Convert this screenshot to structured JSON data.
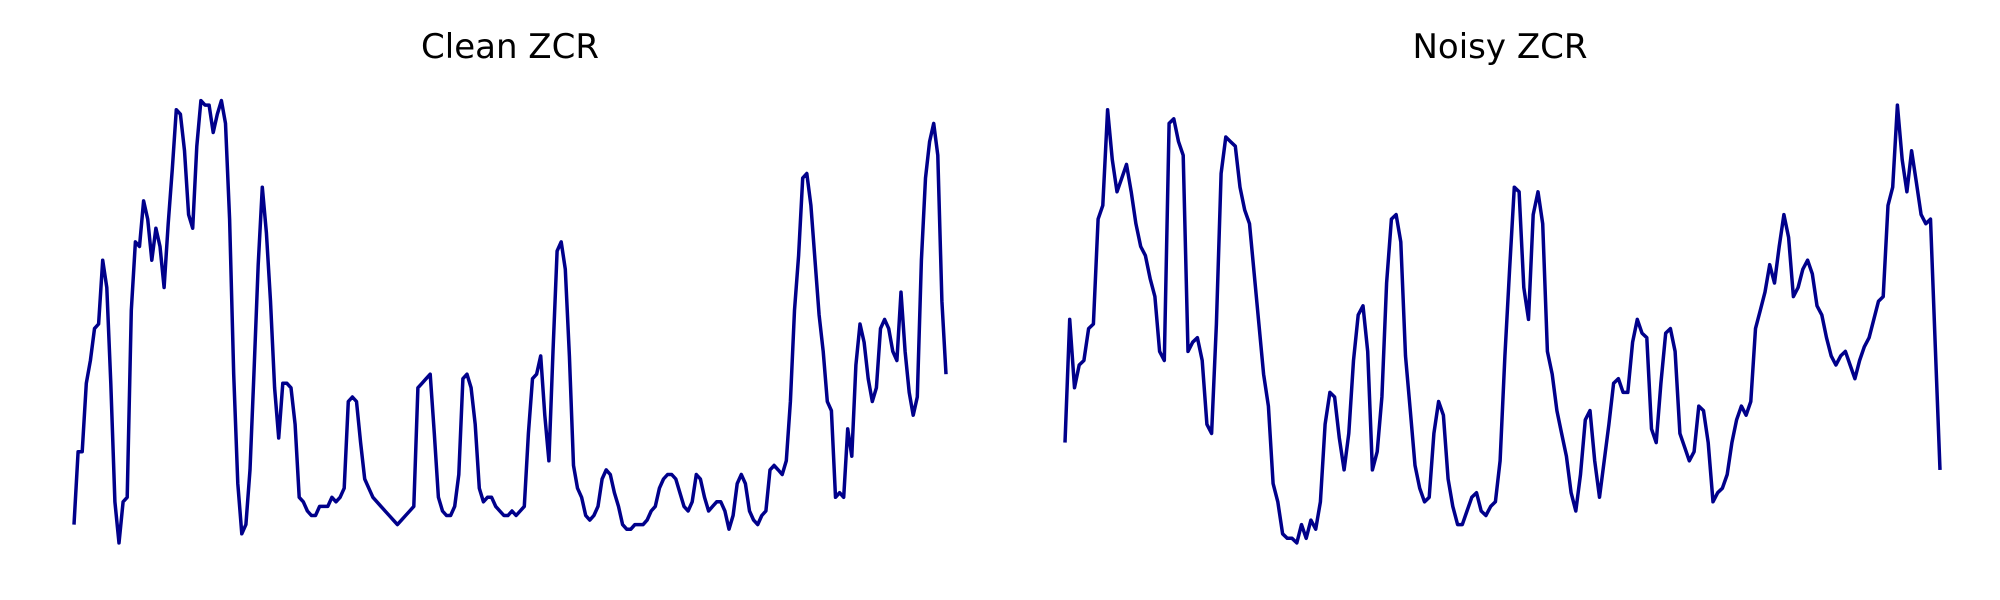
{
  "chart_data": [
    {
      "type": "line",
      "title": "Clean ZCR",
      "xlabel": "",
      "ylabel": "",
      "grid": false,
      "axes_visible": false,
      "color": "#00008b",
      "ylim": [
        0,
        1
      ],
      "values": [
        0.06,
        0.22,
        0.22,
        0.37,
        0.42,
        0.49,
        0.5,
        0.64,
        0.58,
        0.37,
        0.11,
        0.02,
        0.11,
        0.12,
        0.53,
        0.68,
        0.67,
        0.77,
        0.73,
        0.64,
        0.71,
        0.67,
        0.58,
        0.72,
        0.84,
        0.97,
        0.96,
        0.88,
        0.74,
        0.71,
        0.89,
        0.99,
        0.98,
        0.98,
        0.92,
        0.96,
        0.99,
        0.94,
        0.73,
        0.39,
        0.15,
        0.04,
        0.06,
        0.18,
        0.4,
        0.63,
        0.8,
        0.7,
        0.55,
        0.36,
        0.25,
        0.37,
        0.37,
        0.36,
        0.28,
        0.12,
        0.11,
        0.09,
        0.08,
        0.08,
        0.1,
        0.1,
        0.1,
        0.12,
        0.11,
        0.12,
        0.14,
        0.33,
        0.34,
        0.33,
        0.24,
        0.16,
        0.14,
        0.12,
        0.11,
        0.1,
        0.09,
        0.08,
        0.07,
        0.06,
        0.07,
        0.08,
        0.09,
        0.1,
        0.36,
        0.37,
        0.38,
        0.39,
        0.26,
        0.12,
        0.09,
        0.08,
        0.08,
        0.1,
        0.17,
        0.38,
        0.39,
        0.36,
        0.28,
        0.14,
        0.11,
        0.12,
        0.12,
        0.1,
        0.09,
        0.08,
        0.08,
        0.09,
        0.08,
        0.09,
        0.1,
        0.26,
        0.38,
        0.39,
        0.43,
        0.3,
        0.2,
        0.44,
        0.66,
        0.68,
        0.62,
        0.43,
        0.19,
        0.14,
        0.12,
        0.08,
        0.07,
        0.08,
        0.1,
        0.16,
        0.18,
        0.17,
        0.13,
        0.1,
        0.06,
        0.05,
        0.05,
        0.06,
        0.06,
        0.06,
        0.07,
        0.09,
        0.1,
        0.14,
        0.16,
        0.17,
        0.17,
        0.16,
        0.13,
        0.1,
        0.09,
        0.11,
        0.17,
        0.16,
        0.12,
        0.09,
        0.1,
        0.11,
        0.11,
        0.09,
        0.05,
        0.08,
        0.15,
        0.17,
        0.15,
        0.09,
        0.07,
        0.06,
        0.08,
        0.09,
        0.18,
        0.19,
        0.18,
        0.17,
        0.2,
        0.33,
        0.53,
        0.65,
        0.82,
        0.83,
        0.76,
        0.64,
        0.52,
        0.44,
        0.33,
        0.31,
        0.12,
        0.13,
        0.12,
        0.27,
        0.21,
        0.41,
        0.5,
        0.46,
        0.38,
        0.33,
        0.36,
        0.49,
        0.51,
        0.49,
        0.44,
        0.42,
        0.57,
        0.44,
        0.35,
        0.3,
        0.34,
        0.64,
        0.82,
        0.9,
        0.94,
        0.87,
        0.55,
        0.39
      ]
    },
    {
      "type": "line",
      "title": "Noisy ZCR",
      "xlabel": "",
      "ylabel": "",
      "grid": false,
      "axes_visible": false,
      "color": "#00008b",
      "ylim": [
        0,
        1
      ],
      "values": [
        0.24,
        0.51,
        0.36,
        0.41,
        0.42,
        0.49,
        0.5,
        0.73,
        0.76,
        0.97,
        0.86,
        0.79,
        0.82,
        0.85,
        0.79,
        0.72,
        0.67,
        0.65,
        0.6,
        0.56,
        0.44,
        0.42,
        0.94,
        0.95,
        0.9,
        0.87,
        0.44,
        0.46,
        0.47,
        0.42,
        0.28,
        0.26,
        0.5,
        0.83,
        0.91,
        0.9,
        0.89,
        0.8,
        0.75,
        0.72,
        0.61,
        0.5,
        0.39,
        0.32,
        0.15,
        0.11,
        0.04,
        0.03,
        0.03,
        0.02,
        0.06,
        0.03,
        0.07,
        0.05,
        0.11,
        0.28,
        0.35,
        0.34,
        0.25,
        0.18,
        0.26,
        0.42,
        0.52,
        0.54,
        0.44,
        0.18,
        0.22,
        0.34,
        0.59,
        0.73,
        0.74,
        0.68,
        0.43,
        0.31,
        0.19,
        0.14,
        0.11,
        0.12,
        0.26,
        0.33,
        0.3,
        0.16,
        0.1,
        0.06,
        0.06,
        0.09,
        0.12,
        0.13,
        0.09,
        0.08,
        0.1,
        0.11,
        0.2,
        0.43,
        0.62,
        0.8,
        0.79,
        0.58,
        0.51,
        0.74,
        0.79,
        0.72,
        0.44,
        0.39,
        0.31,
        0.26,
        0.21,
        0.13,
        0.09,
        0.17,
        0.29,
        0.31,
        0.2,
        0.12,
        0.2,
        0.28,
        0.37,
        0.38,
        0.35,
        0.35,
        0.46,
        0.51,
        0.48,
        0.47,
        0.27,
        0.24,
        0.37,
        0.48,
        0.49,
        0.44,
        0.26,
        0.23,
        0.2,
        0.22,
        0.32,
        0.31,
        0.24,
        0.11,
        0.13,
        0.14,
        0.17,
        0.24,
        0.29,
        0.32,
        0.3,
        0.33,
        0.49,
        0.53,
        0.57,
        0.63,
        0.59,
        0.67,
        0.74,
        0.69,
        0.56,
        0.58,
        0.62,
        0.64,
        0.61,
        0.54,
        0.52,
        0.47,
        0.43,
        0.41,
        0.43,
        0.44,
        0.41,
        0.38,
        0.42,
        0.45,
        0.47,
        0.51,
        0.55,
        0.56,
        0.76,
        0.8,
        0.98,
        0.86,
        0.79,
        0.88,
        0.81,
        0.74,
        0.72,
        0.73,
        0.45,
        0.18
      ]
    }
  ]
}
